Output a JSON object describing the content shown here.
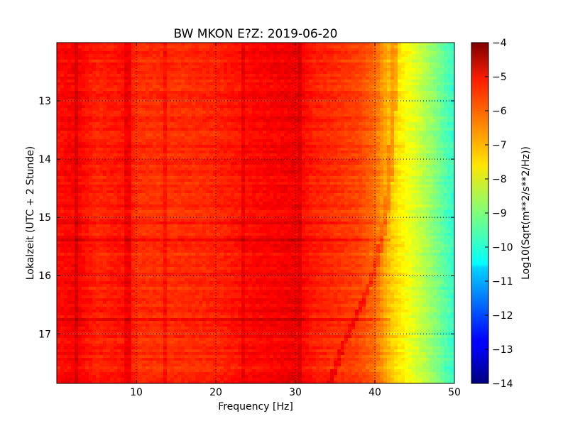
{
  "chart_data": {
    "type": "heatmap",
    "title": "BW MKON E?Z: 2019-06-20",
    "xlabel": "Frequency [Hz]",
    "ylabel": "Lokalzeit (UTC + 2 Stunde)",
    "xlim": [
      0,
      50
    ],
    "ylim": [
      17.85,
      12.0
    ],
    "y_inverted": true,
    "grid": true,
    "x_ticks": [
      10,
      20,
      30,
      40,
      50
    ],
    "x_tick_labels": [
      "10",
      "20",
      "30",
      "40",
      "50"
    ],
    "y_ticks": [
      13,
      14,
      15,
      16,
      17
    ],
    "y_tick_labels": [
      "13",
      "14",
      "15",
      "16",
      "17"
    ],
    "colorbar": {
      "label": "Log10(Sqrt(m**2/s**2/Hz))",
      "range": [
        -14,
        -4
      ],
      "colormap": "jet",
      "ticks": [
        -4,
        -5,
        -6,
        -7,
        -8,
        -9,
        -10,
        -11,
        -12,
        -13,
        -14
      ],
      "tick_labels": [
        "−4",
        "−5",
        "−6",
        "−7",
        "−8",
        "−9",
        "−10",
        "−11",
        "−12",
        "−13",
        "−14"
      ]
    },
    "spectral_profile": {
      "frequency_hz": [
        0,
        1,
        2.5,
        5,
        9,
        10,
        15,
        20,
        25,
        28,
        30,
        32,
        35,
        38,
        40,
        42,
        44,
        46,
        48,
        50
      ],
      "log10_amplitude": [
        -5.4,
        -5.3,
        -5.2,
        -5.6,
        -5.4,
        -5.7,
        -5.7,
        -5.6,
        -5.3,
        -5.2,
        -5.1,
        -5.5,
        -5.7,
        -5.9,
        -6.3,
        -7.2,
        -7.8,
        -8.4,
        -9.1,
        -9.8
      ]
    },
    "line_features_hz": [
      2.5,
      9.0,
      13.5,
      23.5,
      30.5
    ],
    "drifting_feature": {
      "time_h": [
        12.4,
        13.5,
        14.5,
        15.3,
        16.0,
        16.6,
        17.2,
        17.8
      ],
      "frequency_hz": [
        42.5,
        42.2,
        41.8,
        41.0,
        39.8,
        38.0,
        36.0,
        34.5
      ]
    },
    "broadband_rows_h": [
      16.75,
      15.1,
      15.4
    ]
  }
}
